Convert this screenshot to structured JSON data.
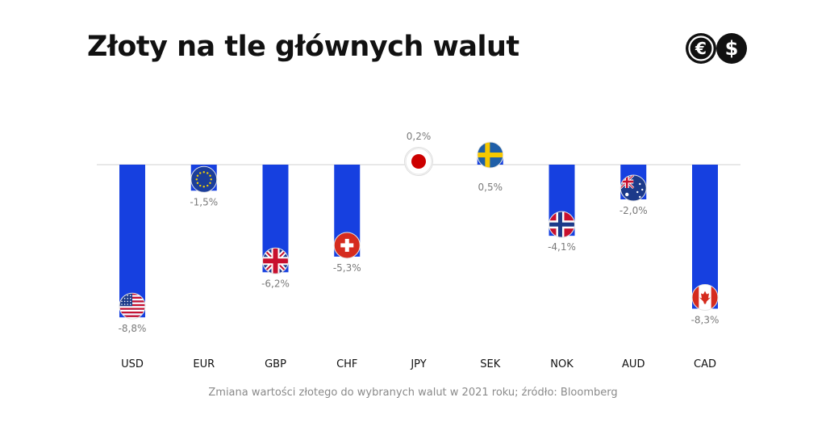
{
  "header": {
    "title": "Złoty na tle głównych walut",
    "logo_icon": "currency-euro-dollar-icon"
  },
  "footnote": "Zmiana wartości złotego do wybranych walut w 2021 roku; źródło: Bloomberg",
  "colors": {
    "bar": "#1640e0",
    "axis": "#d0d0d0",
    "value_text": "#7a7a7a"
  },
  "chart_data": {
    "type": "bar",
    "title": "Złoty na tle głównych walut",
    "xlabel": "",
    "ylabel": "",
    "categories": [
      "USD",
      "EUR",
      "GBP",
      "CHF",
      "JPY",
      "SEK",
      "NOK",
      "AUD",
      "CAD"
    ],
    "values": [
      -8.8,
      -1.5,
      -6.2,
      -5.3,
      0.2,
      0.5,
      -4.1,
      -2.0,
      -8.3
    ],
    "value_labels": [
      "-8,8%",
      "-1,5%",
      "-6,2%",
      "-5,3%",
      "0,2%",
      "0,5%",
      "-4,1%",
      "-2,0%",
      "-8,3%"
    ],
    "flag_icons": [
      "us-flag-icon",
      "eu-flag-icon",
      "uk-flag-icon",
      "swiss-flag-icon",
      "japan-flag-icon",
      "sweden-flag-icon",
      "norway-flag-icon",
      "australia-flag-icon",
      "canada-flag-icon"
    ],
    "ylim": [
      -9,
      0.5
    ],
    "grid": false,
    "legend": "none"
  }
}
